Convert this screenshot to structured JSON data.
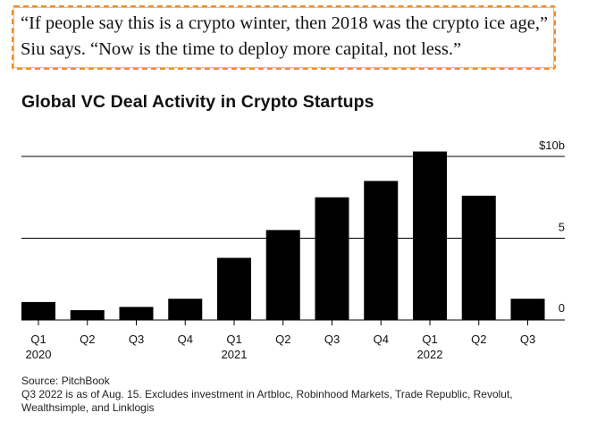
{
  "quote": {
    "text": "“If people say this is a crypto winter, then 2018 was the crypto ice age,” Siu says. “Now is the time to deploy more capital, not less.”"
  },
  "colors": {
    "bar": "#000000",
    "gridline": "#000000",
    "highlight_border": "#f08a24",
    "text": "#111111"
  },
  "chart_data": {
    "type": "bar",
    "title": "Global VC Deal Activity in Crypto Startups",
    "categories": [
      "Q1 2020",
      "Q2 2020",
      "Q3 2020",
      "Q4 2020",
      "Q1 2021",
      "Q2 2021",
      "Q3 2021",
      "Q4 2021",
      "Q1 2022",
      "Q2 2022",
      "Q3 2022"
    ],
    "quarter_labels": [
      "Q1",
      "Q2",
      "Q3",
      "Q4",
      "Q1",
      "Q2",
      "Q3",
      "Q4",
      "Q1",
      "Q2",
      "Q3"
    ],
    "year_labels": [
      "2020",
      "",
      "",
      "",
      "2021",
      "",
      "",
      "",
      "2022",
      "",
      ""
    ],
    "values": [
      1.1,
      0.6,
      0.8,
      1.3,
      3.8,
      5.5,
      7.5,
      8.5,
      10.3,
      7.6,
      1.3
    ],
    "unit": "billion USD",
    "ylim": [
      0,
      10
    ],
    "yticks": [
      0,
      5,
      10
    ],
    "ytick_labels": [
      "0",
      "5",
      "$10b"
    ],
    "ytick_side": "right",
    "grid": true,
    "legend": "none",
    "xlabel": "",
    "ylabel": ""
  },
  "source": "Source: PitchBook",
  "footnote": "Q3 2022 is as of Aug. 15. Excludes investment in Artbloc, Robinhood Markets, Trade Republic, Revolut, Wealthsimple, and Linklogis"
}
